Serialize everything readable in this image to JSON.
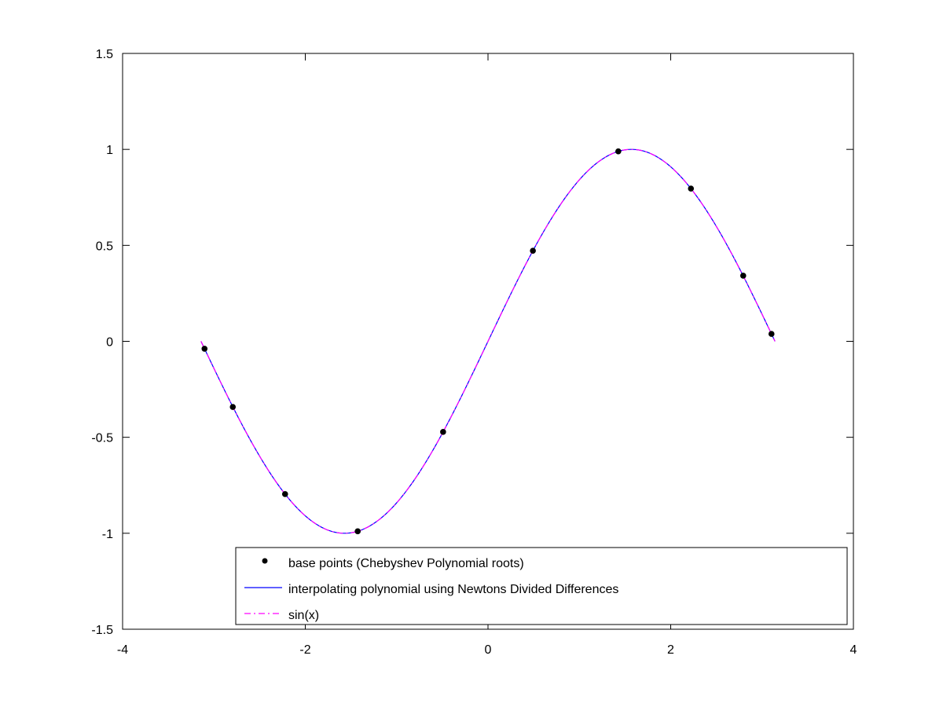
{
  "chart_data": {
    "type": "line",
    "title": "",
    "xlabel": "",
    "ylabel": "",
    "xlim": [
      -4,
      4
    ],
    "ylim": [
      -1.5,
      1.5
    ],
    "x_ticks": [
      -4,
      -2,
      0,
      2,
      4
    ],
    "x_tick_labels": [
      "-4",
      "-2",
      "0",
      "2",
      "4"
    ],
    "y_ticks": [
      -1.5,
      -1,
      -0.5,
      0,
      0.5,
      1,
      1.5
    ],
    "y_tick_labels": [
      "-1.5",
      "-1",
      "-0.5",
      "0",
      "0.5",
      "1",
      "1.5"
    ],
    "grid": false,
    "legend_position": "bottom-right",
    "x_range": [
      -3.1416,
      3.1416
    ],
    "series": [
      {
        "name": "base points (Chebyshev Polynomial roots)",
        "kind": "markers",
        "color": "#000000",
        "x": [
          -3.1031,
          -2.7936,
          -2.2214,
          -1.4263,
          -0.4915,
          0.4915,
          1.4263,
          2.2214,
          2.7936,
          3.1031
        ],
        "y": [
          -0.0385,
          -0.342,
          -0.7958,
          -0.9898,
          -0.472,
          0.472,
          0.9898,
          0.7958,
          0.342,
          0.0385
        ]
      },
      {
        "name": "interpolating polynomial using Newtons Divided Differences",
        "kind": "line",
        "color": "#0000ff",
        "function": "sin"
      },
      {
        "name": "sin(x)",
        "kind": "dashdot",
        "color": "#ff00ff",
        "function": "sin"
      }
    ]
  }
}
